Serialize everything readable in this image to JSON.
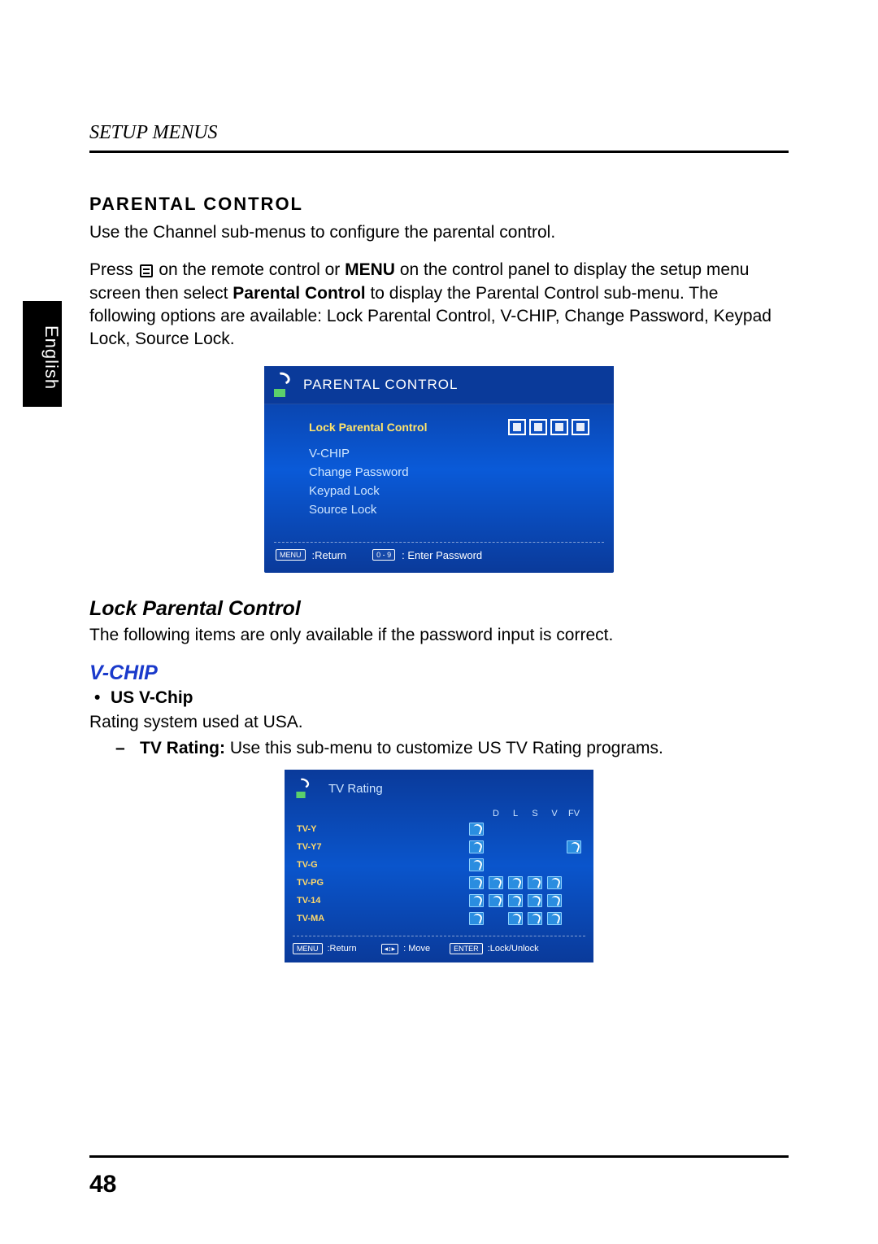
{
  "side_tab": "English",
  "setup_header": "SETUP MENUS",
  "section_title": "PARENTAL CONTROL",
  "intro_line": "Use the Channel sub-menus to configure the parental control.",
  "press_prefix": "Press ",
  "press_mid1": " on the remote control or ",
  "press_menu_word": "MENU",
  "press_mid2": " on the control panel to display the setup menu screen then select ",
  "press_bold_pc": "Parental Control",
  "press_suffix": " to display the Parental Control sub-menu. The following options are available: Lock Parental Control, V-CHIP, Change Password, Keypad Lock, Source Lock.",
  "screenshot1": {
    "title": "PARENTAL CONTROL",
    "selected": "Lock Parental Control",
    "items": [
      "V-CHIP",
      "Change Password",
      "Keypad Lock",
      "Source Lock"
    ],
    "footer": {
      "menu_key": "MENU",
      "return_label": ":Return",
      "num_key": "0 - 9",
      "enter_pw_label": ": Enter Password"
    },
    "colors": {
      "bg_top": "#0a3a9a",
      "bg_mid": "#0a5ad8",
      "selected_color": "#ffe46b",
      "item_color": "#cfe6ff"
    }
  },
  "lock_pc_heading": "Lock Parental Control",
  "lock_pc_text": "The following items are only available if the password input is correct.",
  "vchip_heading": "V-CHIP",
  "us_vchip_label": "US V-Chip",
  "us_vchip_text": "Rating system used at USA.",
  "tv_rating_bold": "TV Rating:",
  "tv_rating_rest": " Use this sub-menu to customize US TV Rating programs.",
  "screenshot2": {
    "title": "TV Rating",
    "columns": [
      "D",
      "L",
      "S",
      "V",
      "FV"
    ],
    "rows": [
      {
        "label": "TV-Y",
        "locks": [
          true,
          false,
          false,
          false,
          false,
          false
        ]
      },
      {
        "label": "TV-Y7",
        "locks": [
          true,
          false,
          false,
          false,
          false,
          true
        ]
      },
      {
        "label": "TV-G",
        "locks": [
          true,
          false,
          false,
          false,
          false,
          false
        ]
      },
      {
        "label": "TV-PG",
        "locks": [
          true,
          true,
          true,
          true,
          true,
          false
        ]
      },
      {
        "label": "TV-14",
        "locks": [
          true,
          true,
          true,
          true,
          true,
          false
        ]
      },
      {
        "label": "TV-MA",
        "locks": [
          true,
          false,
          true,
          true,
          true,
          false
        ]
      }
    ],
    "footer": {
      "menu_key": "MENU",
      "return_label": ":Return",
      "move_label": ": Move",
      "enter_key": "ENTER",
      "lock_label": ":Lock/Unlock"
    }
  },
  "page_number": "48"
}
